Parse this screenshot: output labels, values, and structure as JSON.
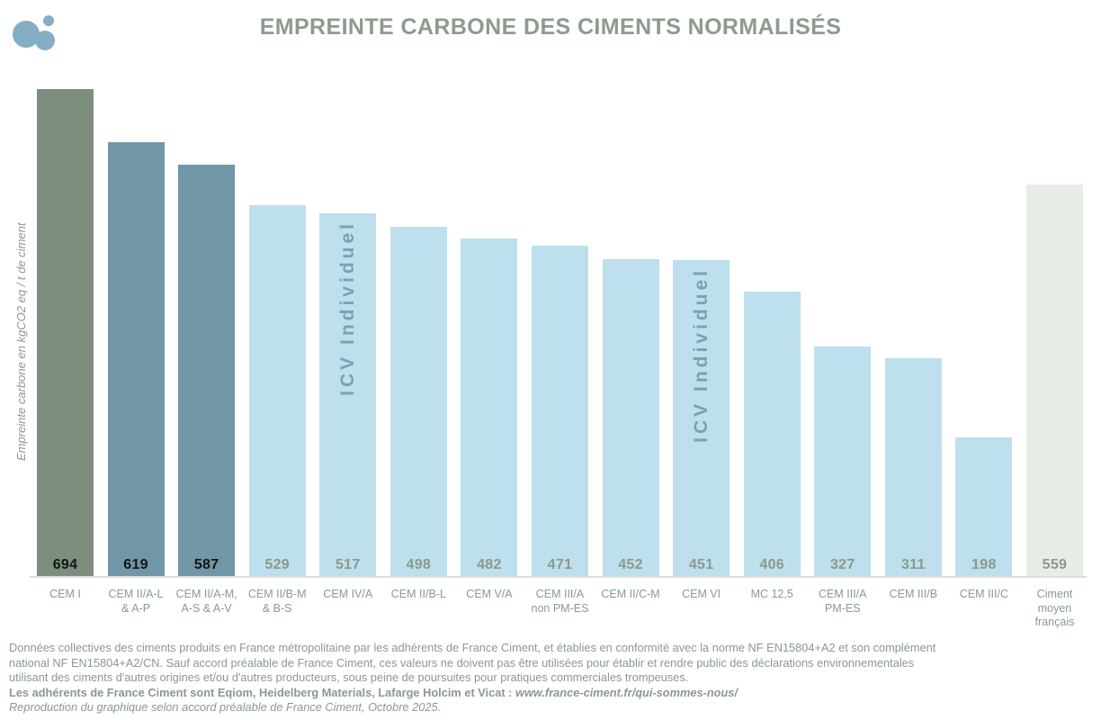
{
  "header": {
    "title": "EMPREINTE CARBONE DES CIMENTS NORMALISÉS",
    "logo_color": "#85AEC4"
  },
  "chart_data": {
    "type": "bar",
    "title": "EMPREINTE CARBONE DES CIMENTS NORMALISÉS",
    "xlabel": "",
    "ylabel": "Empreinte carbone en kgCO2 eq / t de ciment",
    "unit": "kgCO2 eq / t de ciment",
    "ylim": [
      0,
      700
    ],
    "grid": false,
    "legend": false,
    "value_labels_shown": true,
    "categories": [
      "CEM I",
      "CEM II/A-L\n& A-P",
      "CEM II/A-M,\nA-S & A-V",
      "CEM II/B-M\n& B-S",
      "CEM IV/A",
      "CEM II/B-L",
      "CEM V/A",
      "CEM III/A\nnon PM-ES",
      "CEM II/C-M",
      "CEM VI",
      "MC 12,5",
      "CEM III/A\nPM-ES",
      "CEM III/B",
      "CEM III/C",
      "Ciment\nmoyen\nfrançais"
    ],
    "values": [
      694,
      619,
      587,
      529,
      517,
      498,
      482,
      471,
      452,
      451,
      406,
      327,
      311,
      198,
      559
    ],
    "bar_colors": [
      "#7D8E7E",
      "#7096A7",
      "#7096A7",
      "#BEDFED",
      "#BEDFED",
      "#BEDFED",
      "#BEDFED",
      "#BEDFED",
      "#BEDFED",
      "#BEDFED",
      "#BEDFED",
      "#BEDFED",
      "#BEDFED",
      "#BEDFED",
      "#E7ECE7"
    ],
    "value_label_colors": [
      "#141414",
      "#141414",
      "#141414",
      "#8A9A8C",
      "#8A9A8C",
      "#8A9A8C",
      "#8A9A8C",
      "#8A9A8C",
      "#8A9A8C",
      "#8A9A8C",
      "#8A9A8C",
      "#8A9A8C",
      "#8A9A8C",
      "#8A9A8C",
      "#8A9A8C"
    ],
    "annotations": [
      {
        "index": 4,
        "text": "ICV Individuel"
      },
      {
        "index": 9,
        "text": "ICV Individuel"
      }
    ]
  },
  "footer": {
    "body_lines": [
      "Données collectives des ciments produits en France métropolitaine par les adhérents de France Ciment, et établies en conformité avec la norme NF EN15804+A2 et son complément",
      "national NF EN15804+A2/CN. Sauf accord préalable de France Ciment, ces valeurs ne doivent pas être utilisées pour établir et rendre public des déclarations environnementales",
      "utilisant des ciments d'autres origines et/ou d'autres producteurs, sous peine de poursuites pour pratiques commerciales trompeuses."
    ],
    "adherents_bold": "Les adhérents de France Ciment sont Eqiom, Heidelberg Materials, Lafarge Holcim et Vicat : ",
    "adherents_url": "www.france-ciment.fr/qui-sommes-nous/",
    "reproduction_note": "Reproduction du graphique selon accord préalable de France Ciment, Octobre 2025."
  }
}
